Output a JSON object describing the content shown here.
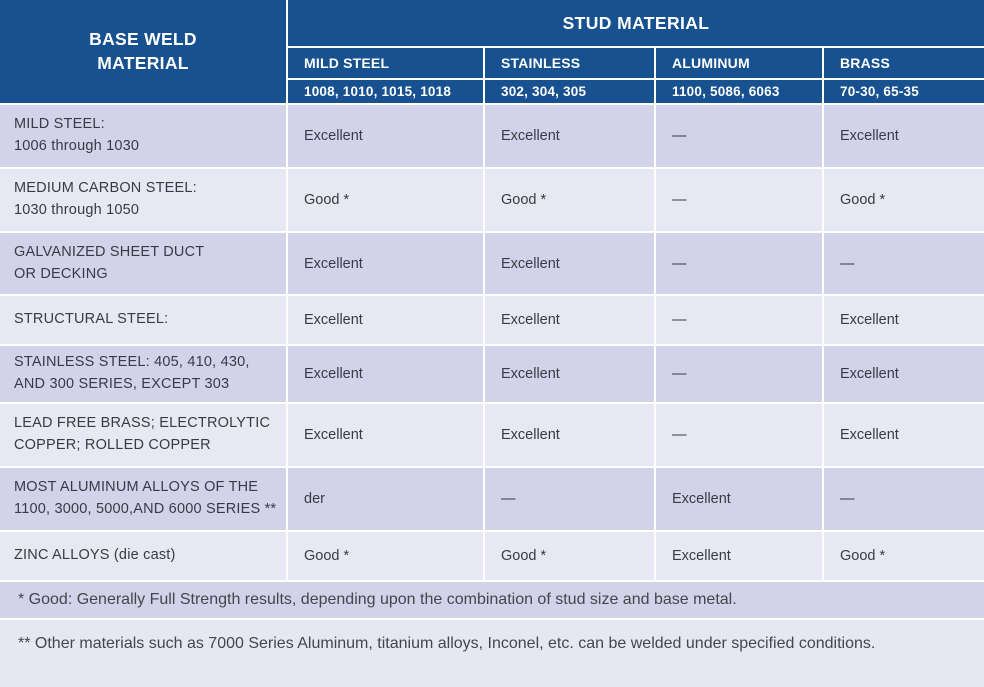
{
  "colors": {
    "header_blue": "#17518f",
    "row_dark": "#d2d3e8",
    "row_light": "#e8e8f4",
    "note_light": "#e6e7f2",
    "body_text": "#3a3a47",
    "header_text": "#ffffff"
  },
  "header": {
    "corner": "BASE WELD\nMATERIAL",
    "group": "STUD MATERIAL",
    "columns": [
      {
        "name": "MILD STEEL",
        "alloys": "1008, 1010, 1015, 1018"
      },
      {
        "name": "STAINLESS",
        "alloys": "302, 304, 305"
      },
      {
        "name": "ALUMINUM",
        "alloys": "1100, 5086, 6063"
      },
      {
        "name": "BRASS",
        "alloys": "70-30, 65-35"
      }
    ]
  },
  "rows": [
    {
      "label": "MILD STEEL:\n1006 through 1030",
      "values": [
        "Excellent",
        "Excellent",
        "—",
        "Excellent"
      ]
    },
    {
      "label": "MEDIUM CARBON STEEL:\n1030 through 1050",
      "values": [
        "Good *",
        "Good *",
        "—",
        "Good *"
      ]
    },
    {
      "label": "GALVANIZED SHEET DUCT\nOR DECKING",
      "values": [
        "Excellent",
        "Excellent",
        "—",
        "—"
      ]
    },
    {
      "label": "STRUCTURAL STEEL:",
      "values": [
        "Excellent",
        "Excellent",
        "—",
        "Excellent"
      ]
    },
    {
      "label": "STAINLESS STEEL: 405, 410, 430,\nAND 300 SERIES, EXCEPT 303",
      "values": [
        "Excellent",
        "Excellent",
        "—",
        "Excellent"
      ]
    },
    {
      "label": "LEAD FREE BRASS; ELECTROLYTIC\nCOPPER; ROLLED COPPER",
      "values": [
        "Excellent",
        "Excellent",
        "—",
        "Excellent"
      ]
    },
    {
      "label": "MOST ALUMINUM ALLOYS OF THE\n1100, 3000, 5000,AND 6000 SERIES **",
      "values": [
        "der",
        "—",
        "Excellent",
        "—"
      ]
    },
    {
      "label": "ZINC ALLOYS (die cast)",
      "values": [
        "Good *",
        "Good *",
        "Excellent",
        "Good *"
      ]
    }
  ],
  "footnotes": [
    "* Good: Generally Full Strength results, depending upon the combination of stud size and base metal.",
    "** Other materials such as 7000 Series Aluminum, titanium alloys, Inconel, etc. can be welded under specified conditions."
  ]
}
